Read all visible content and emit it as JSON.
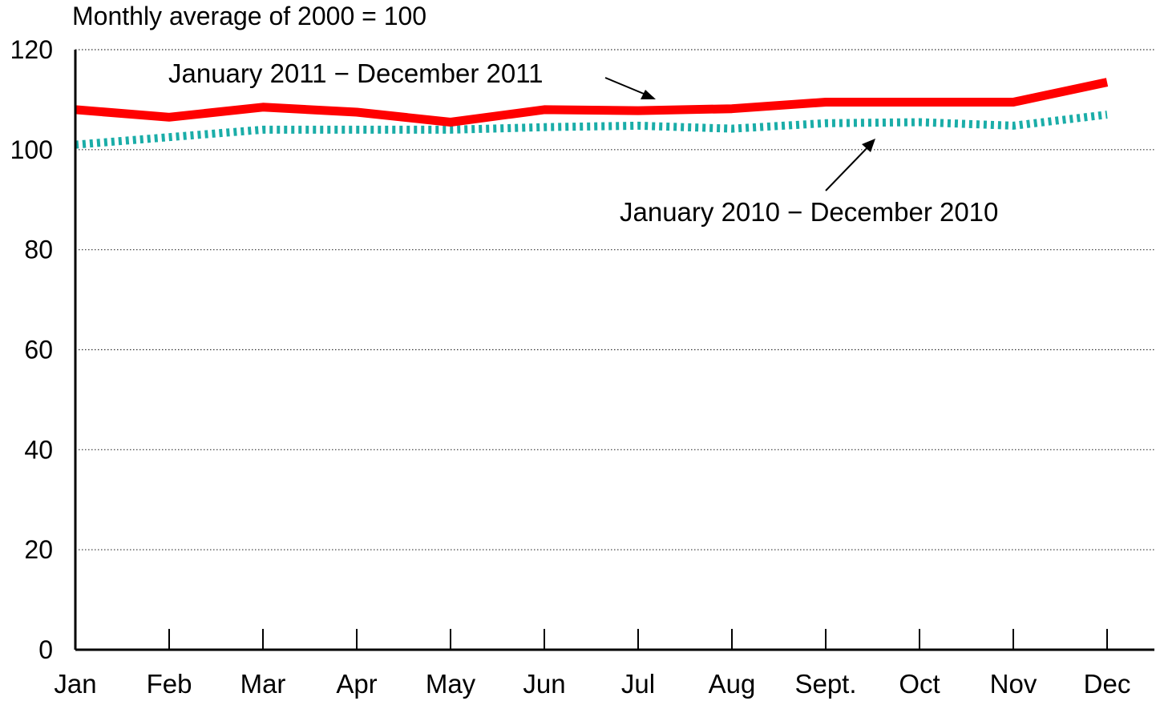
{
  "chart_data": {
    "type": "line",
    "title": "Monthly average of 2000 = 100",
    "categories": [
      "Jan",
      "Feb",
      "Mar",
      "Apr",
      "May",
      "Jun",
      "Jul",
      "Aug",
      "Sept.",
      "Oct",
      "Nov",
      "Dec"
    ],
    "y_ticks": [
      "0",
      "20",
      "40",
      "60",
      "80",
      "100",
      "120"
    ],
    "ylim": [
      0,
      120
    ],
    "grid": "horizontal dotted",
    "series": [
      {
        "name": "January 2011 − December 2011",
        "style": "solid",
        "color": "#ff0000",
        "values": [
          108,
          106.5,
          108.5,
          107.5,
          105.5,
          108,
          107.8,
          108.2,
          109.5,
          109.5,
          109.5,
          113.5
        ]
      },
      {
        "name": "January 2010 − December 2010",
        "style": "dotted",
        "color": "#1aada8",
        "values": [
          101,
          102.5,
          104,
          104,
          104,
          104.5,
          104.8,
          104.2,
          105.3,
          105.5,
          104.8,
          107
        ]
      }
    ]
  }
}
